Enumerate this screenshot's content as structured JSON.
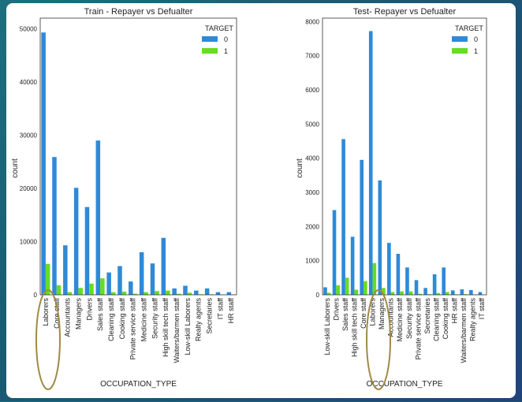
{
  "chart_data": [
    {
      "type": "bar",
      "title": "Train - Repayer vs Defualter",
      "xlabel": "OCCUPATION_TYPE",
      "ylabel": "count",
      "ylim": [
        0,
        52000
      ],
      "yticks": [
        0,
        10000,
        20000,
        30000,
        40000,
        50000
      ],
      "legend_title": "TARGET",
      "legend_placement": "top-right",
      "grid": false,
      "categories": [
        "Laborers",
        "Core staff",
        "Accountants",
        "Managers",
        "Drivers",
        "Sales staff",
        "Cleaning staff",
        "Cooking staff",
        "Private service staff",
        "Medicine staff",
        "Security staff",
        "High skill tech staff",
        "Waiters/barmen staff",
        "Low-skill Laborers",
        "Realty agents",
        "Secretaries",
        "IT staff",
        "HR staff"
      ],
      "series": [
        {
          "name": "0",
          "color": "#2e8ad8",
          "values": [
            49300,
            25900,
            9300,
            20100,
            16500,
            29000,
            4200,
            5400,
            2500,
            8000,
            5900,
            10700,
            1200,
            1700,
            800,
            1200,
            500,
            500
          ]
        },
        {
          "name": "1",
          "color": "#66dd22",
          "values": [
            5800,
            1800,
            500,
            1300,
            2100,
            3100,
            500,
            600,
            200,
            500,
            700,
            800,
            200,
            400,
            100,
            100,
            50,
            50
          ]
        }
      ]
    },
    {
      "type": "bar",
      "title": "Test- Repayer vs Defualter",
      "xlabel": "OCCUPATION_TYPE",
      "ylabel": "count",
      "ylim": [
        0,
        8100
      ],
      "yticks": [
        0,
        1000,
        2000,
        3000,
        4000,
        5000,
        6000,
        7000,
        8000
      ],
      "legend_title": "TARGET",
      "legend_placement": "top-right",
      "grid": false,
      "categories": [
        "Low-skill Laborers",
        "Drivers",
        "Sales staff",
        "High skill tech staff",
        "Core staff",
        "Laborers",
        "Managers",
        "Accountants",
        "Medicine staff",
        "Security staff",
        "Private service staff",
        "Secretaries",
        "Cleaning staff",
        "Cooking staff",
        "HR staff",
        "Waiters/barmen staff",
        "Realty agents",
        "IT staff"
      ],
      "series": [
        {
          "name": "0",
          "color": "#2e8ad8",
          "values": [
            220,
            2480,
            4560,
            1700,
            3950,
            7720,
            3350,
            1520,
            1200,
            800,
            430,
            200,
            600,
            800,
            130,
            160,
            140,
            80
          ]
        },
        {
          "name": "1",
          "color": "#66dd22",
          "values": [
            60,
            280,
            500,
            150,
            400,
            930,
            200,
            80,
            100,
            100,
            30,
            20,
            50,
            80,
            15,
            20,
            10,
            10
          ]
        }
      ]
    }
  ]
}
